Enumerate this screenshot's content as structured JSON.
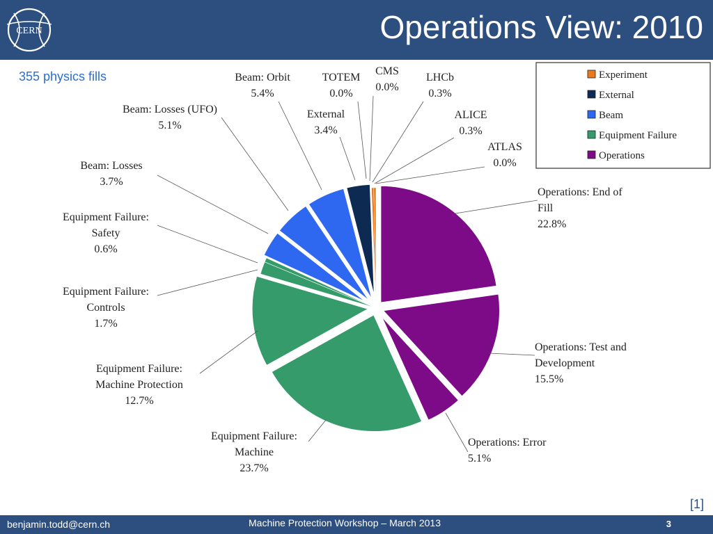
{
  "slide": {
    "title": "Operations View: 2010",
    "subtitle": "355 physics fills",
    "logo_text": "CERN",
    "reference": "[1]"
  },
  "footer": {
    "email": "benjamin.todd@cern.ch",
    "event": "Machine Protection Workshop – March 2013",
    "page_number": "3"
  },
  "chart_data": {
    "type": "pie",
    "title": "",
    "legend": {
      "placement": "top-right",
      "entries": [
        {
          "name": "Experiment",
          "color": "#e87a1c"
        },
        {
          "name": "External",
          "color": "#0d2a52"
        },
        {
          "name": "Beam",
          "color": "#2f68f0"
        },
        {
          "name": "Equipment Failure",
          "color": "#369b6a"
        },
        {
          "name": "Operations",
          "color": "#7d0a86"
        }
      ]
    },
    "slices": [
      {
        "lines": [
          "Operations: End of",
          "Fill"
        ],
        "value_label": "22.8%",
        "value": 22.8,
        "group": "Operations"
      },
      {
        "lines": [
          "Operations: Test and",
          "Development"
        ],
        "value_label": "15.5%",
        "value": 15.5,
        "group": "Operations"
      },
      {
        "lines": [
          "Operations: Error"
        ],
        "value_label": "5.1%",
        "value": 5.1,
        "group": "Operations"
      },
      {
        "lines": [
          "Equipment Failure:",
          "Machine"
        ],
        "value_label": "23.7%",
        "value": 23.7,
        "group": "Equipment Failure"
      },
      {
        "lines": [
          "Equipment Failure:",
          "Machine Protection"
        ],
        "value_label": "12.7%",
        "value": 12.7,
        "group": "Equipment Failure"
      },
      {
        "lines": [
          "Equipment Failure:",
          "Controls"
        ],
        "value_label": "1.7%",
        "value": 1.7,
        "group": "Equipment Failure"
      },
      {
        "lines": [
          "Equipment Failure:",
          "Safety"
        ],
        "value_label": "0.6%",
        "value": 0.6,
        "group": "Equipment Failure"
      },
      {
        "lines": [
          "Beam: Losses"
        ],
        "value_label": "3.7%",
        "value": 3.7,
        "group": "Beam"
      },
      {
        "lines": [
          "Beam: Losses (UFO)"
        ],
        "value_label": "5.1%",
        "value": 5.1,
        "group": "Beam"
      },
      {
        "lines": [
          "Beam: Orbit"
        ],
        "value_label": "5.4%",
        "value": 5.4,
        "group": "Beam"
      },
      {
        "lines": [
          "External"
        ],
        "value_label": "3.4%",
        "value": 3.4,
        "group": "External"
      },
      {
        "lines": [
          "TOTEM"
        ],
        "value_label": "0.0%",
        "value": 0.0,
        "group": "Experiment"
      },
      {
        "lines": [
          "CMS"
        ],
        "value_label": "0.0%",
        "value": 0.0,
        "group": "Experiment"
      },
      {
        "lines": [
          "LHCb"
        ],
        "value_label": "0.3%",
        "value": 0.3,
        "group": "Experiment"
      },
      {
        "lines": [
          "ALICE"
        ],
        "value_label": "0.3%",
        "value": 0.3,
        "group": "Experiment"
      },
      {
        "lines": [
          "ATLAS"
        ],
        "value_label": "0.0%",
        "value": 0.0,
        "group": "Experiment"
      }
    ]
  }
}
